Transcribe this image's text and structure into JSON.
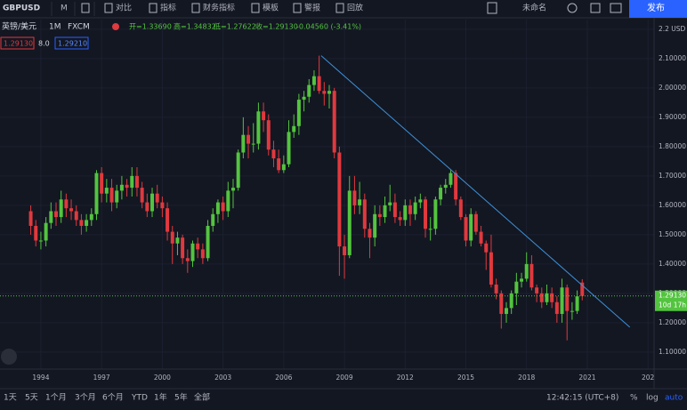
{
  "toolbar": {
    "symbol": "GBPUSD",
    "interval": "M",
    "items": [
      "对比",
      "指标",
      "财务指标",
      "模板",
      "警报",
      "回放"
    ],
    "layout_name": "未命名",
    "publish": "发布"
  },
  "legend": {
    "name": "英镑/美元",
    "interval": "1M",
    "source": "FXCM",
    "open": "开=1.33690",
    "high": "高=1.34832",
    "low": "低=1.27622",
    "close": "收=1.29130",
    "change": "-0.04560 (-3.41%)",
    "bid": "1.29130",
    "spread": "8.0",
    "ask": "1.29210"
  },
  "chart_data": {
    "type": "candlestick",
    "up_color": "#53c43f",
    "down_color": "#e0393e",
    "x": [
      1993.5,
      1993.75,
      1994,
      1994.25,
      1994.5,
      1994.75,
      1995,
      1995.25,
      1995.5,
      1995.75,
      1996,
      1996.25,
      1996.5,
      1996.75,
      1997,
      1997.25,
      1997.5,
      1997.75,
      1998,
      1998.25,
      1998.5,
      1998.75,
      1999,
      1999.25,
      1999.5,
      1999.75,
      2000,
      2000.25,
      2000.5,
      2000.75,
      2001,
      2001.25,
      2001.5,
      2001.75,
      2002,
      2002.25,
      2002.5,
      2002.75,
      2003,
      2003.25,
      2003.5,
      2003.75,
      2004,
      2004.25,
      2004.5,
      2004.75,
      2005,
      2005.25,
      2005.5,
      2005.75,
      2006,
      2006.25,
      2006.5,
      2006.75,
      2007,
      2007.25,
      2007.5,
      2007.75,
      2008,
      2008.25,
      2008.5,
      2008.75,
      2009,
      2009.25,
      2009.5,
      2009.75,
      2010,
      2010.25,
      2010.5,
      2010.75,
      2011,
      2011.25,
      2011.5,
      2011.75,
      2012,
      2012.25,
      2012.5,
      2012.75,
      2013,
      2013.25,
      2013.5,
      2013.75,
      2014,
      2014.25,
      2014.5,
      2014.75,
      2015,
      2015.25,
      2015.5,
      2015.75,
      2016,
      2016.25,
      2016.5,
      2016.75,
      2017,
      2017.25,
      2017.5,
      2017.75,
      2018,
      2018.25,
      2018.5,
      2018.75,
      2019,
      2019.25,
      2019.5,
      2019.75,
      2020,
      2020.25,
      2020.5,
      2020.75
    ],
    "open": [
      1.58,
      1.53,
      1.48,
      1.48,
      1.54,
      1.58,
      1.56,
      1.62,
      1.59,
      1.58,
      1.55,
      1.53,
      1.55,
      1.57,
      1.71,
      1.64,
      1.66,
      1.61,
      1.65,
      1.67,
      1.66,
      1.7,
      1.66,
      1.61,
      1.58,
      1.64,
      1.61,
      1.59,
      1.51,
      1.47,
      1.49,
      1.42,
      1.41,
      1.47,
      1.45,
      1.42,
      1.53,
      1.57,
      1.61,
      1.58,
      1.65,
      1.66,
      1.78,
      1.84,
      1.81,
      1.81,
      1.92,
      1.89,
      1.79,
      1.76,
      1.72,
      1.74,
      1.85,
      1.87,
      1.96,
      1.97,
      2.01,
      2.04,
      1.99,
      1.98,
      1.99,
      1.78,
      1.46,
      1.43,
      1.65,
      1.6,
      1.62,
      1.52,
      1.49,
      1.57,
      1.56,
      1.6,
      1.61,
      1.56,
      1.55,
      1.6,
      1.57,
      1.61,
      1.62,
      1.52,
      1.52,
      1.62,
      1.66,
      1.67,
      1.71,
      1.62,
      1.56,
      1.48,
      1.57,
      1.51,
      1.47,
      1.44,
      1.33,
      1.3,
      1.23,
      1.25,
      1.3,
      1.34,
      1.35,
      1.4,
      1.32,
      1.3,
      1.27,
      1.3,
      1.27,
      1.23,
      1.32,
      1.24,
      1.24,
      1.3369
    ],
    "high": [
      1.6,
      1.55,
      1.51,
      1.56,
      1.61,
      1.61,
      1.65,
      1.64,
      1.62,
      1.6,
      1.57,
      1.57,
      1.59,
      1.72,
      1.73,
      1.69,
      1.69,
      1.67,
      1.7,
      1.69,
      1.73,
      1.73,
      1.68,
      1.64,
      1.66,
      1.67,
      1.63,
      1.61,
      1.53,
      1.51,
      1.5,
      1.45,
      1.48,
      1.49,
      1.47,
      1.55,
      1.59,
      1.62,
      1.63,
      1.68,
      1.69,
      1.79,
      1.9,
      1.87,
      1.88,
      1.95,
      1.95,
      1.91,
      1.82,
      1.79,
      1.77,
      1.89,
      1.91,
      1.98,
      1.99,
      2.03,
      2.06,
      2.11,
      2.02,
      2.01,
      2.0,
      1.8,
      1.5,
      1.7,
      1.7,
      1.68,
      1.64,
      1.54,
      1.6,
      1.6,
      1.63,
      1.67,
      1.64,
      1.58,
      1.62,
      1.62,
      1.63,
      1.64,
      1.63,
      1.56,
      1.63,
      1.67,
      1.69,
      1.72,
      1.72,
      1.63,
      1.57,
      1.59,
      1.58,
      1.53,
      1.48,
      1.5,
      1.35,
      1.31,
      1.27,
      1.31,
      1.37,
      1.37,
      1.44,
      1.43,
      1.33,
      1.32,
      1.33,
      1.32,
      1.29,
      1.35,
      1.33,
      1.27,
      1.31,
      1.34832
    ],
    "low": [
      1.5,
      1.46,
      1.45,
      1.46,
      1.52,
      1.53,
      1.54,
      1.56,
      1.55,
      1.53,
      1.5,
      1.51,
      1.53,
      1.55,
      1.61,
      1.61,
      1.58,
      1.59,
      1.62,
      1.63,
      1.63,
      1.63,
      1.59,
      1.56,
      1.56,
      1.59,
      1.56,
      1.48,
      1.4,
      1.43,
      1.4,
      1.37,
      1.39,
      1.42,
      1.4,
      1.41,
      1.51,
      1.54,
      1.55,
      1.56,
      1.59,
      1.65,
      1.76,
      1.76,
      1.78,
      1.79,
      1.85,
      1.77,
      1.73,
      1.71,
      1.71,
      1.73,
      1.83,
      1.84,
      1.92,
      1.95,
      1.99,
      1.98,
      1.94,
      1.93,
      1.76,
      1.36,
      1.35,
      1.42,
      1.57,
      1.57,
      1.49,
      1.42,
      1.46,
      1.53,
      1.54,
      1.58,
      1.54,
      1.53,
      1.53,
      1.53,
      1.55,
      1.59,
      1.49,
      1.48,
      1.5,
      1.6,
      1.64,
      1.66,
      1.6,
      1.55,
      1.46,
      1.46,
      1.5,
      1.46,
      1.38,
      1.32,
      1.28,
      1.18,
      1.2,
      1.23,
      1.26,
      1.32,
      1.34,
      1.31,
      1.27,
      1.25,
      1.26,
      1.25,
      1.2,
      1.2,
      1.14,
      1.21,
      1.23,
      1.27622
    ],
    "close": [
      1.53,
      1.48,
      1.48,
      1.54,
      1.58,
      1.56,
      1.62,
      1.59,
      1.58,
      1.55,
      1.53,
      1.55,
      1.57,
      1.71,
      1.64,
      1.66,
      1.61,
      1.65,
      1.67,
      1.66,
      1.7,
      1.66,
      1.61,
      1.58,
      1.64,
      1.61,
      1.59,
      1.51,
      1.47,
      1.49,
      1.42,
      1.41,
      1.47,
      1.45,
      1.42,
      1.53,
      1.57,
      1.61,
      1.58,
      1.65,
      1.66,
      1.78,
      1.84,
      1.81,
      1.81,
      1.92,
      1.89,
      1.79,
      1.76,
      1.72,
      1.74,
      1.85,
      1.87,
      1.96,
      1.97,
      2.01,
      2.04,
      1.99,
      1.98,
      1.99,
      1.78,
      1.46,
      1.43,
      1.65,
      1.6,
      1.62,
      1.52,
      1.49,
      1.57,
      1.56,
      1.6,
      1.61,
      1.56,
      1.55,
      1.6,
      1.57,
      1.61,
      1.62,
      1.52,
      1.52,
      1.62,
      1.66,
      1.67,
      1.71,
      1.62,
      1.56,
      1.48,
      1.57,
      1.51,
      1.47,
      1.44,
      1.33,
      1.3,
      1.23,
      1.25,
      1.3,
      1.34,
      1.35,
      1.4,
      1.32,
      1.3,
      1.27,
      1.3,
      1.27,
      1.23,
      1.32,
      1.24,
      1.24,
      1.29,
      1.2913
    ],
    "xlim": [
      1991.98,
      2024.3
    ],
    "ylim": [
      1.042,
      2.233
    ],
    "xticks": [
      1994,
      1997,
      2000,
      2003,
      2006,
      2009,
      2012,
      2015,
      2018,
      2021,
      {
        "value": 2024,
        "label": "202"
      }
    ],
    "yticks": [
      {
        "value": 1.1,
        "label": "1.10000"
      },
      {
        "value": 1.2,
        "label": "1.20000"
      },
      {
        "value": 1.3,
        "label": "1.30000"
      },
      {
        "value": 1.4,
        "label": "1.40000"
      },
      {
        "value": 1.5,
        "label": "1.50000"
      },
      {
        "value": 1.6,
        "label": "1.60000"
      },
      {
        "value": 1.7,
        "label": "1.70000"
      },
      {
        "value": 1.8,
        "label": "1.80000"
      },
      {
        "value": 1.9,
        "label": "1.90000"
      },
      {
        "value": 2.0,
        "label": "2.00000"
      },
      {
        "value": 2.1,
        "label": "2.10000"
      },
      {
        "value": 2.2,
        "label": "2.2 USD"
      }
    ],
    "trendline": {
      "x": [
        2007.85,
        2023.1
      ],
      "y": [
        2.11,
        1.185
      ],
      "color": "#3d8fd6"
    },
    "last_price": {
      "value": 1.2913,
      "label": "1.29130",
      "countdown": "10d 17h"
    }
  },
  "bottom_bar": {
    "ranges": [
      "1天",
      "5天",
      "1个月",
      "3个月",
      "6个月",
      "YTD",
      "1年",
      "5年",
      "全部"
    ],
    "time": "12:42:15 (UTC+8)",
    "percent": "%",
    "log": "log",
    "auto": "auto"
  }
}
